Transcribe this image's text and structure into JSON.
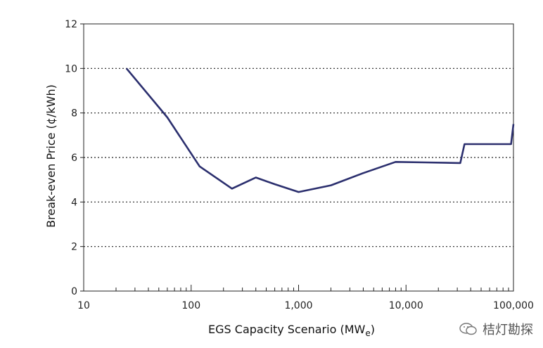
{
  "chart_data": {
    "type": "line",
    "xscale": "log",
    "xlim": [
      10,
      100000
    ],
    "ylim": [
      0,
      12
    ],
    "xticks": [
      10,
      100,
      1000,
      10000,
      100000
    ],
    "xtick_labels": [
      "10",
      "100",
      "1,000",
      "10,000",
      "100,000"
    ],
    "yticks": [
      0,
      2,
      4,
      6,
      8,
      10,
      12
    ],
    "ytick_labels": [
      "0",
      "2",
      "4",
      "6",
      "8",
      "10",
      "12"
    ],
    "grid": "horizontal dotted",
    "xlabel_main": "EGS Capacity Scenario (MW",
    "xlabel_sub": "e",
    "xlabel_end": ")",
    "ylabel": "Break-even Price (¢/kWh)",
    "series": [
      {
        "color": "#2b2f6e",
        "points": [
          [
            25,
            10.0
          ],
          [
            60,
            7.8
          ],
          [
            120,
            5.6
          ],
          [
            240,
            4.6
          ],
          [
            400,
            5.1
          ],
          [
            600,
            4.8
          ],
          [
            1000,
            4.45
          ],
          [
            2000,
            4.75
          ],
          [
            4000,
            5.3
          ],
          [
            8000,
            5.8
          ],
          [
            15000,
            5.78
          ],
          [
            32000,
            5.75
          ],
          [
            35000,
            6.6
          ],
          [
            95000,
            6.6
          ],
          [
            100000,
            7.5
          ]
        ]
      }
    ]
  },
  "watermark": {
    "text": "桔灯勘探",
    "icon": "wechat-icon"
  }
}
